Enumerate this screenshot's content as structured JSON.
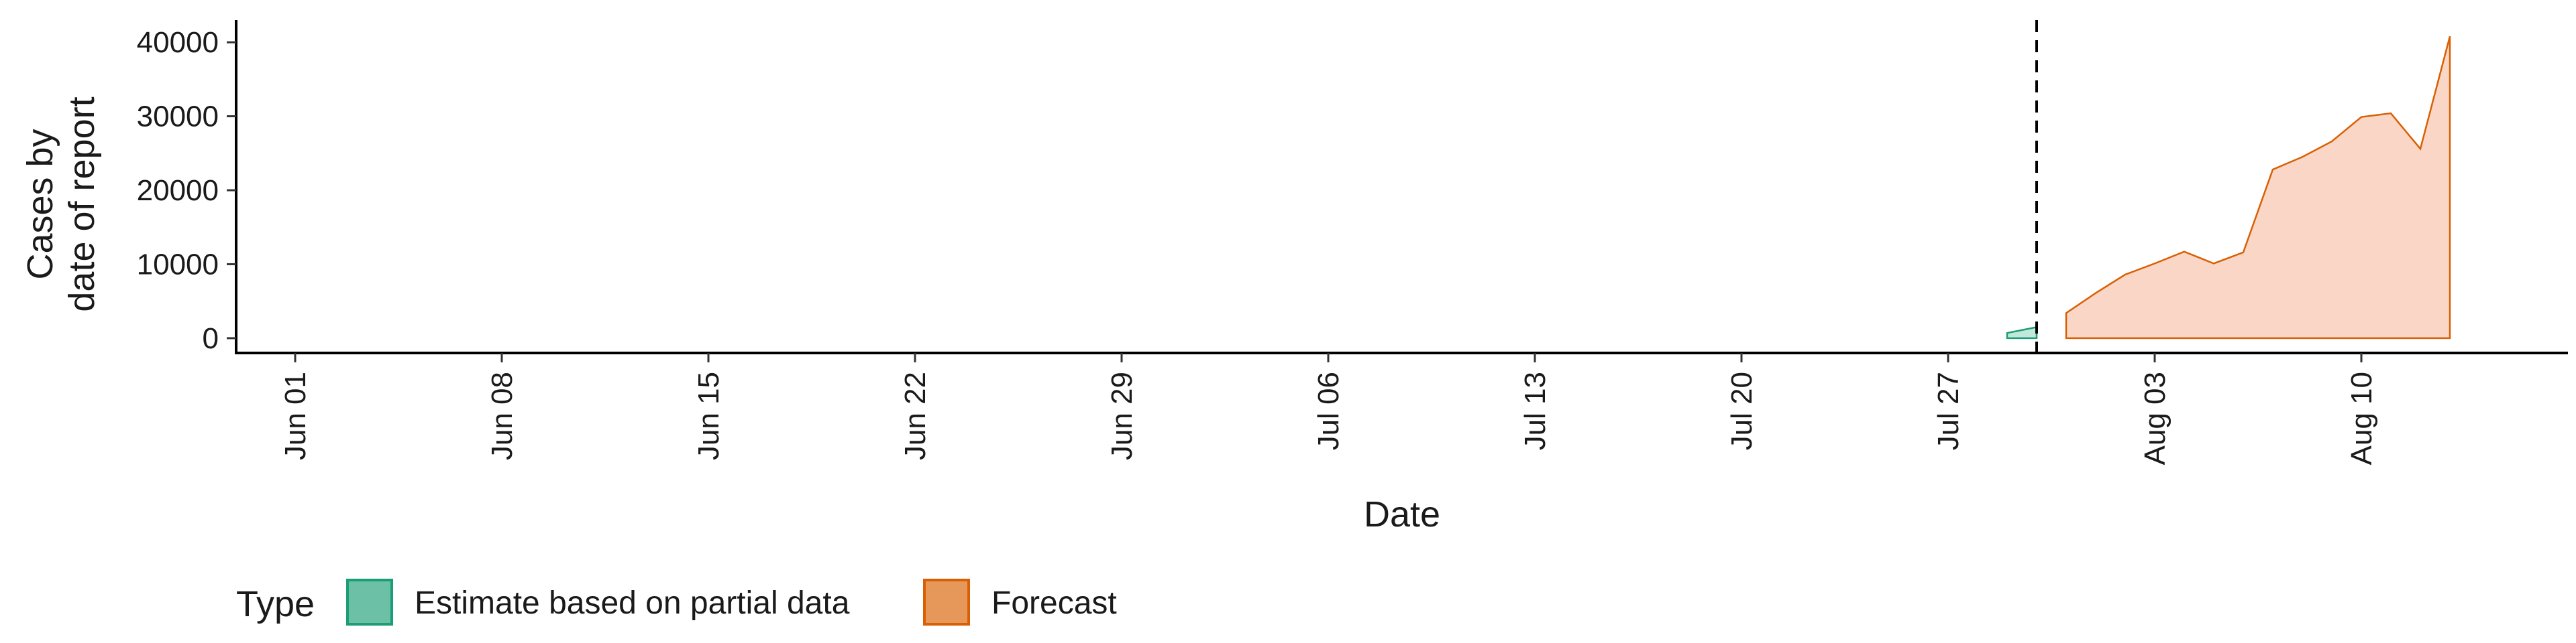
{
  "chart_data": {
    "type": "area",
    "xlabel": "Date",
    "ylabel_lines": [
      "Cases by",
      "date of report"
    ],
    "x_ticks": [
      "Jun 01",
      "Jun 08",
      "Jun 15",
      "Jun 22",
      "Jun 29",
      "Jul 06",
      "Jul 13",
      "Jul 20",
      "Jul 27",
      "Aug 03",
      "Aug 10"
    ],
    "x_tick_dates": [
      "2020-06-01",
      "2020-06-08",
      "2020-06-15",
      "2020-06-22",
      "2020-06-29",
      "2020-07-06",
      "2020-07-13",
      "2020-07-20",
      "2020-07-27",
      "2020-08-03",
      "2020-08-10"
    ],
    "xlim": [
      "2020-05-30",
      "2020-08-17"
    ],
    "y_ticks": [
      0,
      10000,
      20000,
      30000,
      40000
    ],
    "ylim": [
      -2000,
      43000
    ],
    "forecast_date": "2020-07-30",
    "legend": {
      "title": "Type",
      "position": "bottom-left"
    },
    "series": [
      {
        "name": "Estimate based on partial data",
        "color": "#1b9e77",
        "fill": "#66c2a5",
        "fill_opacity": 0.4,
        "x": [
          "2020-07-29",
          "2020-07-30"
        ],
        "y": [
          700,
          1500
        ]
      },
      {
        "name": "Forecast",
        "color": "#d95f02",
        "fill": "#f4a582",
        "fill_opacity": 0.45,
        "x": [
          "2020-07-31",
          "2020-08-01",
          "2020-08-02",
          "2020-08-03",
          "2020-08-04",
          "2020-08-05",
          "2020-08-06",
          "2020-08-07",
          "2020-08-08",
          "2020-08-09",
          "2020-08-10",
          "2020-08-11",
          "2020-08-12",
          "2020-08-13"
        ],
        "y": [
          3400,
          6100,
          8600,
          10100,
          11700,
          10100,
          11600,
          22800,
          24500,
          26600,
          29900,
          30400,
          25600,
          40800
        ]
      }
    ],
    "grid": false
  }
}
